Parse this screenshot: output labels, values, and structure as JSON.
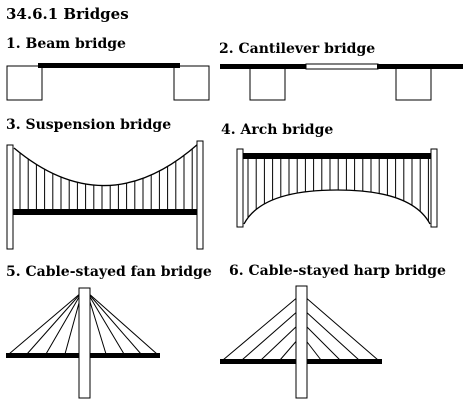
{
  "title": "34.6.1 Bridges",
  "diagrams": [
    {
      "id": "beam",
      "label": "1. Beam bridge"
    },
    {
      "id": "cantilever",
      "label": "2. Cantilever bridge"
    },
    {
      "id": "suspension",
      "label": "3. Suspension bridge"
    },
    {
      "id": "arch",
      "label": "4. Arch bridge"
    },
    {
      "id": "fan",
      "label": "5. Cable-stayed fan bridge"
    },
    {
      "id": "harp",
      "label": "6. Cable-stayed harp bridge"
    }
  ],
  "colors": {
    "ink": "#000000",
    "paper": "#ffffff"
  }
}
